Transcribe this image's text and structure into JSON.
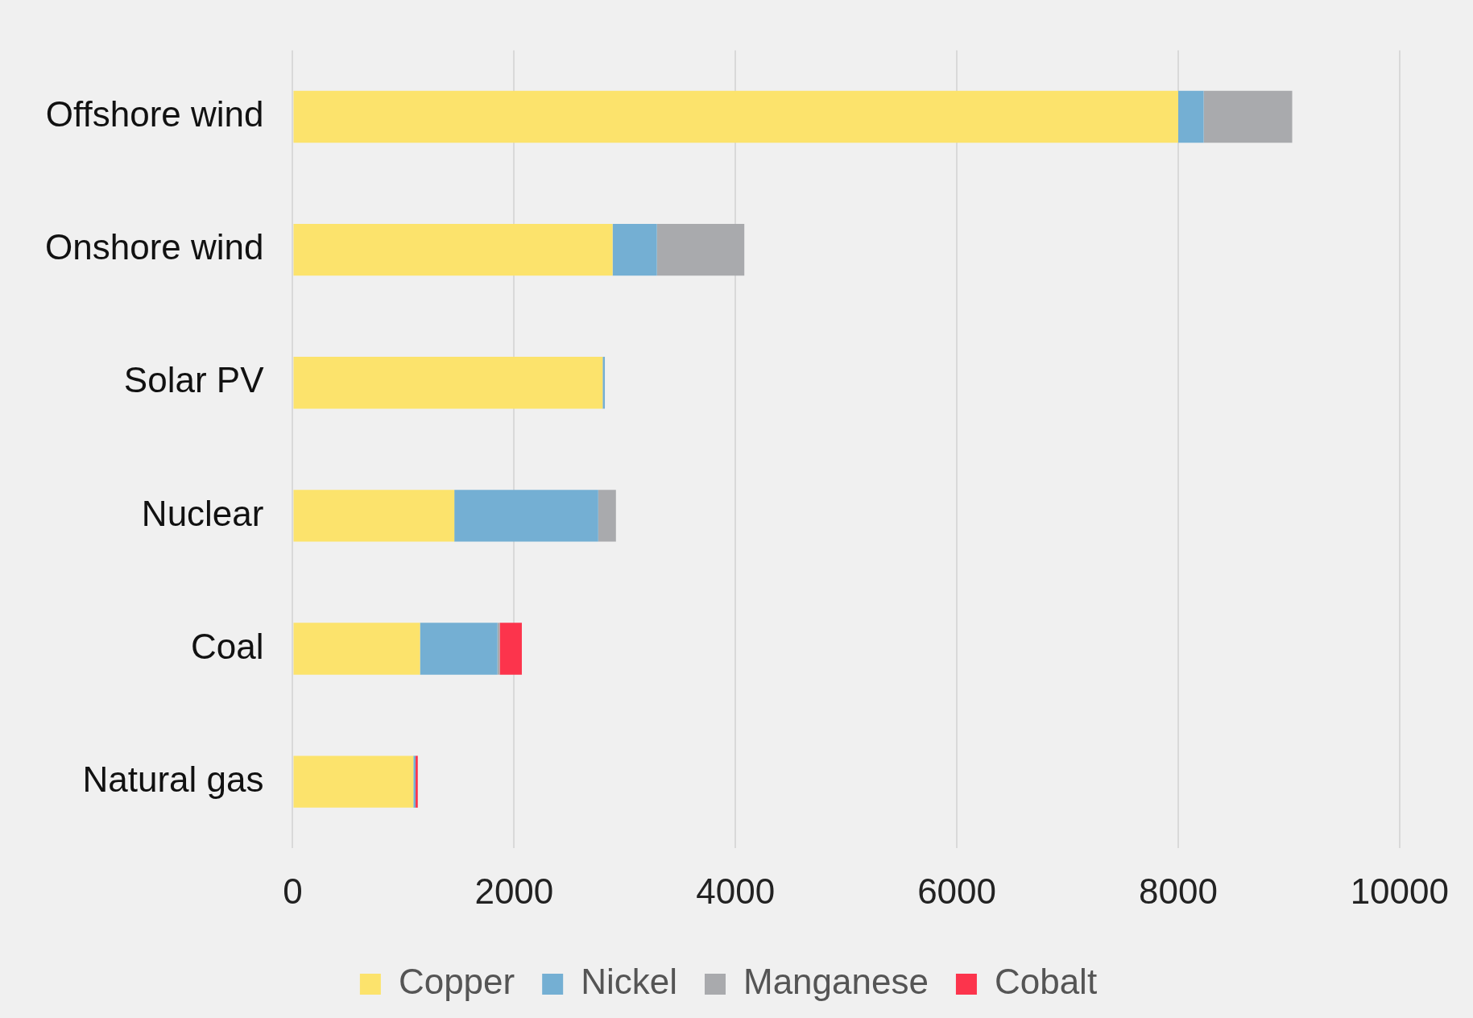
{
  "chart_data": {
    "type": "bar",
    "orientation": "horizontal",
    "stacked": true,
    "categories": [
      "Offshore wind",
      "Onshore wind",
      "Solar PV",
      "Nuclear",
      "Coal",
      "Natural gas"
    ],
    "series": [
      {
        "name": "Copper",
        "color": "#fce36c",
        "values": [
          8000,
          2890,
          2800,
          1460,
          1150,
          1090
        ]
      },
      {
        "name": "Nickel",
        "color": "#74afd3",
        "values": [
          230,
          400,
          20,
          1300,
          700,
          20
        ]
      },
      {
        "name": "Manganese",
        "color": "#a9aaad",
        "values": [
          800,
          790,
          0,
          160,
          20,
          0
        ]
      },
      {
        "name": "Cobalt",
        "color": "#fc344c",
        "values": [
          0,
          0,
          0,
          0,
          200,
          20
        ]
      }
    ],
    "xlim": [
      0,
      10000
    ],
    "xticks": [
      0,
      2000,
      4000,
      6000,
      8000,
      10000
    ],
    "grid": "x",
    "legend": "bottom"
  }
}
